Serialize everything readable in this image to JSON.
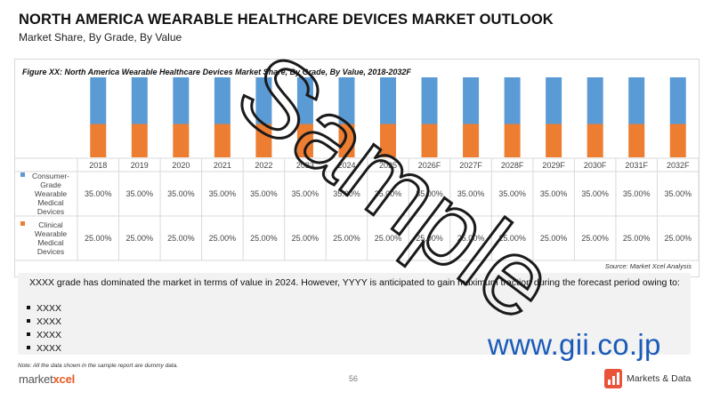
{
  "header": {
    "title": "NORTH AMERICA WEARABLE HEALTHCARE DEVICES MARKET OUTLOOK",
    "subtitle": "Market Share, By Grade, By Value"
  },
  "figure_caption": "Figure XX: North America Wearable Healthcare Devices Market Share, By Grade, By Value, 2018-2032F",
  "chart_data": {
    "type": "bar",
    "stacked": true,
    "normalized_100": true,
    "categories": [
      "2018",
      "2019",
      "2020",
      "2021",
      "2022",
      "2023",
      "2024",
      "2025",
      "2026F",
      "2027F",
      "2028F",
      "2029F",
      "2030F",
      "2031F",
      "2032F"
    ],
    "series": [
      {
        "name": "Consumer-Grade Wearable Medical Devices",
        "color": "#5b9bd5",
        "values": [
          35,
          35,
          35,
          35,
          35,
          35,
          35,
          35,
          35,
          35,
          35,
          35,
          35,
          35,
          35
        ],
        "labels": [
          "35.00%",
          "35.00%",
          "35.00%",
          "35.00%",
          "35.00%",
          "35.00%",
          "35.00%",
          "35.00%",
          "35.00%",
          "35.00%",
          "35.00%",
          "35.00%",
          "35.00%",
          "35.00%",
          "35.00%"
        ]
      },
      {
        "name": "Clinical Wearable Medical Devices",
        "color": "#ed7d31",
        "values": [
          25,
          25,
          25,
          25,
          25,
          25,
          25,
          25,
          25,
          25,
          25,
          25,
          25,
          25,
          25
        ],
        "labels": [
          "25.00%",
          "25.00%",
          "25.00%",
          "25.00%",
          "25.00%",
          "25.00%",
          "25.00%",
          "25.00%",
          "25.00%",
          "25.00%",
          "25.00%",
          "25.00%",
          "25.00%",
          "25.00%",
          "25.00%"
        ]
      }
    ],
    "data_table": true,
    "legend_placement": "left of data table",
    "source": "Source: Market Xcel Analysis"
  },
  "commentary": {
    "text": "XXXX grade has dominated the market in terms of value in 2024. However, YYYY is anticipated to gain maximum traction during the forecast period owing to:",
    "bullets": [
      "XXXX",
      "XXXX",
      "XXXX",
      "XXXX"
    ]
  },
  "footer": {
    "note": "Note: All the data shown in the sample report are dummy data.",
    "left_logo_prefix": "market",
    "left_logo_accent": "xcel",
    "page_number": "56",
    "right_logo": "Markets & Data"
  },
  "watermarks": {
    "sample_outline": "Sample",
    "sample_large": "SAMPLE",
    "url": "www.gii.co.jp"
  },
  "colors": {
    "consumer": "#5b9bd5",
    "clinical": "#ed7d31",
    "watermark": "#1a1a1a",
    "url": "#1a5bb8",
    "brand_accent": "#e85a23"
  }
}
